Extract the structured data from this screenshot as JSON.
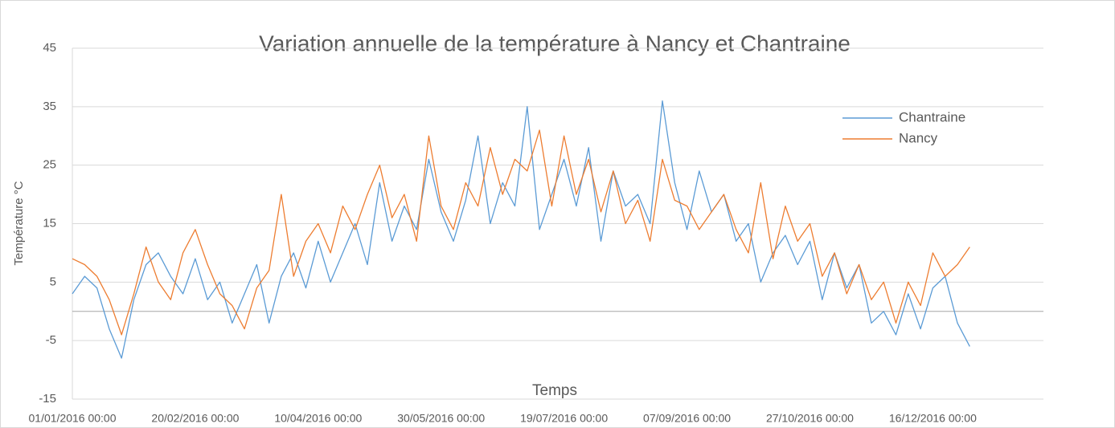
{
  "chart_data": {
    "type": "line",
    "title": "Variation annuelle de la température à Nancy et Chantraine",
    "x_label": "Temps",
    "y_label": "Température °C",
    "categories": [
      "01/01/2016 00:00",
      null,
      null,
      null,
      null,
      null,
      null,
      null,
      null,
      null,
      "20/02/2016 00:00",
      null,
      null,
      null,
      null,
      null,
      null,
      null,
      null,
      null,
      "10/04/2016 00:00",
      null,
      null,
      null,
      null,
      null,
      null,
      null,
      null,
      null,
      "30/05/2016 00:00",
      null,
      null,
      null,
      null,
      null,
      null,
      null,
      null,
      null,
      "19/07/2016 00:00",
      null,
      null,
      null,
      null,
      null,
      null,
      null,
      null,
      null,
      "07/09/2016 00:00",
      null,
      null,
      null,
      null,
      null,
      null,
      null,
      null,
      null,
      "27/10/2016 00:00",
      null,
      null,
      null,
      null,
      null,
      null,
      null,
      null,
      null,
      "16/12/2016 00:00",
      null,
      null,
      null,
      null,
      null,
      null,
      null,
      null
    ],
    "series": [
      {
        "name": "Chantraine",
        "color": "#5b9bd5",
        "values": [
          3,
          6,
          4,
          -3,
          -8,
          2,
          8,
          10,
          6,
          3,
          9,
          2,
          5,
          -2,
          3,
          8,
          -2,
          6,
          10,
          4,
          12,
          5,
          10,
          15,
          8,
          22,
          12,
          18,
          14,
          26,
          17,
          12,
          19,
          30,
          15,
          22,
          18,
          35,
          14,
          20,
          26,
          18,
          28,
          12,
          24,
          18,
          20,
          15,
          36,
          22,
          14,
          24,
          17,
          20,
          12,
          15,
          5,
          10,
          13,
          8,
          12,
          2,
          10,
          4,
          8,
          -2,
          0,
          -4,
          3,
          -3,
          4,
          6,
          -2,
          -6,
          null,
          null,
          null,
          null,
          null
        ]
      },
      {
        "name": "Nancy",
        "color": "#ed7d31",
        "values": [
          9,
          8,
          6,
          2,
          -4,
          3,
          11,
          5,
          2,
          10,
          14,
          8,
          3,
          1,
          -3,
          4,
          7,
          20,
          6,
          12,
          15,
          10,
          18,
          14,
          20,
          25,
          16,
          20,
          12,
          30,
          18,
          14,
          22,
          18,
          28,
          20,
          26,
          24,
          31,
          18,
          30,
          20,
          26,
          17,
          24,
          15,
          19,
          12,
          26,
          19,
          18,
          14,
          17,
          20,
          14,
          10,
          22,
          9,
          18,
          12,
          15,
          6,
          10,
          3,
          8,
          2,
          5,
          -2,
          5,
          1,
          10,
          6,
          8,
          11,
          null,
          null,
          null,
          null,
          null
        ]
      }
    ],
    "ylim": [
      -15,
      45
    ],
    "yticks": [
      -15,
      -5,
      5,
      15,
      25,
      35,
      45
    ],
    "grid": true,
    "legend": "upper right"
  }
}
